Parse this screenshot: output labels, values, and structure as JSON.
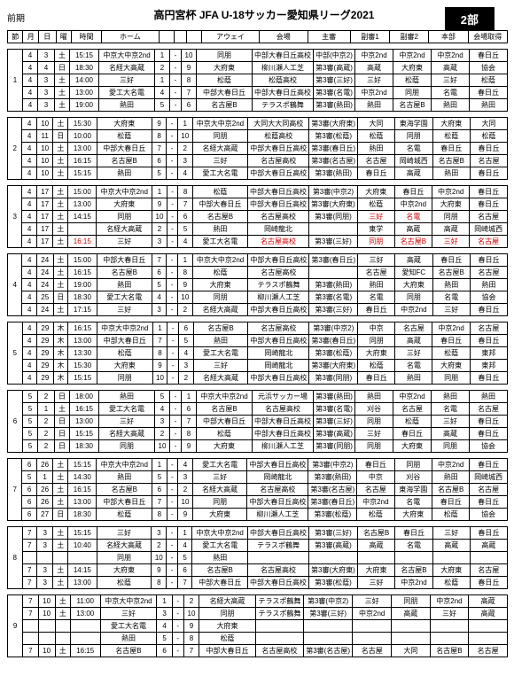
{
  "title": "高円宮杯 JFA U-18サッカー愛知県リーグ2021",
  "badge": "2部",
  "period": "前期",
  "headers": [
    "節",
    "月",
    "日",
    "曜",
    "時間",
    "ホーム",
    "",
    "",
    "",
    "アウェイ",
    "会場",
    "主審",
    "副審1",
    "副審2",
    "本部",
    "会場取得"
  ],
  "blocks": [
    {
      "setu": "1",
      "rows": [
        [
          "4",
          "3",
          "土",
          "15:15",
          "中京大中京2nd",
          "1",
          "-",
          "10",
          "同朋",
          "中部大春日丘高校",
          "中部(中京2)",
          "中京2nd",
          "中京2nd",
          "中京2nd",
          "春日丘"
        ],
        [
          "4",
          "4",
          "日",
          "18:30",
          "名経大高蔵",
          "2",
          "-",
          "9",
          "大府東",
          "柳川瀬人工芝",
          "第3審(高蔵)",
          "高蔵",
          "大府東",
          "高蔵",
          "協会"
        ],
        [
          "4",
          "3",
          "土",
          "14:00",
          "三好",
          "1",
          "-",
          "8",
          "松蔭",
          "松蔭高校",
          "第3審(三好)",
          "三好",
          "松蔭",
          "三好",
          "松蔭"
        ],
        [
          "4",
          "3",
          "土",
          "13:00",
          "愛工大名電",
          "4",
          "-",
          "7",
          "中部大春日丘",
          "中部大春日丘高校",
          "第3審(名電)",
          "中京2nd",
          "同朋",
          "名電",
          "春日丘"
        ],
        [
          "4",
          "3",
          "土",
          "19:00",
          "熱田",
          "5",
          "-",
          "6",
          "名古屋B",
          "テラスポ鶴舞",
          "第3審(熱田)",
          "熱田",
          "名古屋B",
          "熱田",
          "熱田"
        ]
      ]
    },
    {
      "setu": "2",
      "rows": [
        [
          "4",
          "10",
          "土",
          "15:30",
          "大府東",
          "9",
          "-",
          "1",
          "中京大中京2nd",
          "大同大大同高校",
          "第3審(大府東)",
          "大同",
          "東海学園",
          "大府東",
          "大同"
        ],
        [
          "4",
          "11",
          "日",
          "10:00",
          "松蔭",
          "8",
          "-",
          "10",
          "同朋",
          "松蔭高校",
          "第3審(松蔭)",
          "松蔭",
          "同朋",
          "松蔭",
          "松蔭"
        ],
        [
          "4",
          "10",
          "土",
          "13:00",
          "中部大春日丘",
          "7",
          "-",
          "2",
          "名経大高蔵",
          "中部大春日丘高校",
          "第3審(春日丘)",
          "熱田",
          "名電",
          "春日丘",
          "春日丘"
        ],
        [
          "4",
          "10",
          "土",
          "16:15",
          "名古屋B",
          "6",
          "-",
          "3",
          "三好",
          "名古屋高校",
          "第3審(名古屋)",
          "名古屋",
          "岡崎城西",
          "名古屋B",
          "名古屋"
        ],
        [
          "4",
          "10",
          "土",
          "15:15",
          "熱田",
          "5",
          "-",
          "4",
          "愛工大名電",
          "中部大春日丘高校",
          "第3審(熱田)",
          "春日丘",
          "高蔵",
          "熱田",
          "春日丘"
        ]
      ]
    },
    {
      "setu": "3",
      "rows": [
        [
          "4",
          "17",
          "土",
          "15:00",
          "中京大中京2nd",
          "1",
          "-",
          "8",
          "松蔭",
          "中部大春日丘高校",
          "第3審(中京2)",
          "大府東",
          "春日丘",
          "中京2nd",
          "春日丘"
        ],
        [
          "4",
          "17",
          "土",
          "13:00",
          "大府東",
          "9",
          "-",
          "7",
          "中部大春日丘",
          "中部大春日丘高校",
          "第3審(大府東)",
          "松蔭",
          "中京2nd",
          "大府東",
          "春日丘"
        ],
        [
          "4",
          "17",
          "土",
          "14:15",
          "同朋",
          "10",
          "-",
          "6",
          "名古屋B",
          "名古屋高校",
          "第3審(同朋)",
          "<red>三好</red>",
          "<red>名電</red>",
          "同朋",
          "名古屋"
        ],
        [
          "4",
          "17",
          "土",
          "",
          "名経大高蔵",
          "2",
          "-",
          "5",
          "熱田",
          "岡崎龍北",
          "",
          "東学",
          "高蔵",
          "高蔵",
          "岡崎城西"
        ],
        [
          "4",
          "17",
          "土",
          "<red>16:15</red>",
          "三好",
          "3",
          "-",
          "4",
          "愛工大名電",
          "<red>名古屋高校</red>",
          "第3審(三好)",
          "<red>同朋</red>",
          "<red>名古屋B</red>",
          "<red>三好</red>",
          "<red>名古屋</red>"
        ]
      ]
    },
    {
      "setu": "4",
      "rows": [
        [
          "4",
          "24",
          "土",
          "15:00",
          "中部大春日丘",
          "7",
          "-",
          "1",
          "中京大中京2nd",
          "中部大春日丘高校",
          "第3審(春日丘)",
          "三好",
          "高蔵",
          "春日丘",
          "春日丘"
        ],
        [
          "4",
          "24",
          "土",
          "16:15",
          "名古屋B",
          "6",
          "-",
          "8",
          "松蔭",
          "名古屋高校",
          "",
          "名古屋",
          "愛知FC",
          "名古屋B",
          "名古屋"
        ],
        [
          "4",
          "24",
          "土",
          "19:00",
          "熱田",
          "5",
          "-",
          "9",
          "大府東",
          "テラスポ鶴舞",
          "第3審(熱田)",
          "熱田",
          "大府東",
          "熱田",
          "熱田"
        ],
        [
          "4",
          "25",
          "日",
          "18:30",
          "愛工大名電",
          "4",
          "-",
          "10",
          "同朋",
          "柳川瀬人工芝",
          "第3審(名電)",
          "名電",
          "同朋",
          "名電",
          "協会"
        ],
        [
          "4",
          "24",
          "土",
          "17:15",
          "三好",
          "3",
          "-",
          "2",
          "名経大高蔵",
          "中部大春日丘高校",
          "第3審(三好)",
          "春日丘",
          "中京2nd",
          "三好",
          "春日丘"
        ]
      ]
    },
    {
      "setu": "5",
      "rows": [
        [
          "4",
          "29",
          "木",
          "16:15",
          "中京大中京2nd",
          "1",
          "-",
          "6",
          "名古屋B",
          "名古屋高校",
          "第3審(中京2)",
          "中京",
          "名古屋",
          "中京2nd",
          "名古屋"
        ],
        [
          "4",
          "29",
          "木",
          "13:00",
          "中部大春日丘",
          "7",
          "-",
          "5",
          "熱田",
          "中部大春日丘高校",
          "第3審(春日丘)",
          "同朋",
          "高蔵",
          "春日丘",
          "春日丘"
        ],
        [
          "4",
          "29",
          "木",
          "13:30",
          "松蔭",
          "8",
          "-",
          "4",
          "愛工大名電",
          "岡崎龍北",
          "第3審(松蔭)",
          "大府東",
          "三好",
          "松蔭",
          "東邦"
        ],
        [
          "4",
          "29",
          "木",
          "15:30",
          "大府東",
          "9",
          "-",
          "3",
          "三好",
          "岡崎龍北",
          "第3審(大府東)",
          "松蔭",
          "名電",
          "大府東",
          "東邦"
        ],
        [
          "4",
          "29",
          "木",
          "15:15",
          "同朋",
          "10",
          "-",
          "2",
          "名経大高蔵",
          "中部大春日丘高校",
          "第3審(同朋)",
          "春日丘",
          "熱田",
          "同朋",
          "春日丘"
        ]
      ]
    },
    {
      "setu": "6",
      "rows": [
        [
          "5",
          "2",
          "日",
          "18:00",
          "熱田",
          "5",
          "-",
          "1",
          "中京大中京2nd",
          "元浜サッカー場",
          "第3審(熱田)",
          "熱田",
          "中京2nd",
          "熱田",
          "熱田"
        ],
        [
          "5",
          "1",
          "土",
          "16:15",
          "愛工大名電",
          "4",
          "-",
          "6",
          "名古屋B",
          "名古屋高校",
          "第3審(名電)",
          "刈谷",
          "名古屋",
          "名電",
          "名古屋"
        ],
        [
          "5",
          "2",
          "日",
          "13:00",
          "三好",
          "3",
          "-",
          "7",
          "中部大春日丘",
          "中部大春日丘高校",
          "第3審(三好)",
          "同朋",
          "松蔭",
          "三好",
          "春日丘"
        ],
        [
          "5",
          "2",
          "日",
          "15:15",
          "名経大高蔵",
          "2",
          "-",
          "8",
          "松蔭",
          "中部大春日丘高校",
          "第3審(高蔵)",
          "三好",
          "春日丘",
          "高蔵",
          "春日丘"
        ],
        [
          "5",
          "2",
          "日",
          "18:30",
          "同朋",
          "10",
          "-",
          "9",
          "大府東",
          "柳川瀬人工芝",
          "第3審(同朋)",
          "同朋",
          "大府東",
          "同朋",
          "協会"
        ]
      ]
    },
    {
      "setu": "7",
      "rows": [
        [
          "6",
          "26",
          "土",
          "15:15",
          "中京大中京2nd",
          "1",
          "-",
          "4",
          "愛工大名電",
          "中部大春日丘高校",
          "第3審(中京2)",
          "春日丘",
          "同朋",
          "中京2nd",
          "春日丘"
        ],
        [
          "5",
          "1",
          "土",
          "14:30",
          "熱田",
          "5",
          "-",
          "3",
          "三好",
          "岡崎龍北",
          "第3審(熱田)",
          "中京",
          "刈谷",
          "熱田",
          "岡崎城西"
        ],
        [
          "6",
          "26",
          "土",
          "16:15",
          "名古屋B",
          "6",
          "-",
          "2",
          "名経大高蔵",
          "名古屋高校",
          "第3審(名古屋)",
          "名古屋",
          "東海学園",
          "名古屋B",
          "名古屋"
        ],
        [
          "6",
          "26",
          "土",
          "13:00",
          "中部大春日丘",
          "7",
          "-",
          "10",
          "同朋",
          "中部大春日丘高校",
          "第3審(春日丘)",
          "中京2nd",
          "名電",
          "春日丘",
          "春日丘"
        ],
        [
          "6",
          "27",
          "日",
          "18:30",
          "松蔭",
          "8",
          "-",
          "9",
          "大府東",
          "柳川瀬人工芝",
          "第3審(松蔭)",
          "松蔭",
          "大府東",
          "松蔭",
          "協会"
        ]
      ]
    },
    {
      "setu": "8",
      "rows": [
        [
          "7",
          "3",
          "土",
          "15:15",
          "三好",
          "3",
          "-",
          "1",
          "中京大中京2nd",
          "中部大春日丘高校",
          "第3審(三好)",
          "名古屋B",
          "春日丘",
          "三好",
          "春日丘"
        ],
        [
          "7",
          "3",
          "土",
          "10:40",
          "名経大高蔵",
          "2",
          "-",
          "4",
          "愛工大名電",
          "テラスポ鶴舞",
          "第3審(高蔵)",
          "高蔵",
          "名電",
          "高蔵",
          "高蔵"
        ],
        [
          "",
          "",
          "",
          "",
          "同朋",
          "10",
          "-",
          "5",
          "熱田",
          "",
          "",
          "",
          "",
          "",
          ""
        ],
        [
          "7",
          "3",
          "土",
          "14:15",
          "大府東",
          "9",
          "-",
          "6",
          "名古屋B",
          "名古屋高校",
          "第3審(大府東)",
          "大府東",
          "名古屋B",
          "大府東",
          "名古屋"
        ],
        [
          "7",
          "3",
          "土",
          "13:00",
          "松蔭",
          "8",
          "-",
          "7",
          "中部大春日丘",
          "中部大春日丘高校",
          "第3審(松蔭)",
          "三好",
          "中京2nd",
          "松蔭",
          "春日丘"
        ]
      ]
    },
    {
      "setu": "9",
      "rows": [
        [
          "7",
          "10",
          "土",
          "11:00",
          "中京大中京2nd",
          "1",
          "-",
          "2",
          "名経大高蔵",
          "テラスポ鶴舞",
          "第3審(中京2)",
          "三好",
          "同朋",
          "中京2nd",
          "高蔵"
        ],
        [
          "7",
          "10",
          "土",
          "13:00",
          "三好",
          "3",
          "-",
          "10",
          "同朋",
          "テラスポ鶴舞",
          "第3審(三好)",
          "中京2nd",
          "高蔵",
          "三好",
          "高蔵"
        ],
        [
          "",
          "",
          "",
          "",
          "愛工大名電",
          "4",
          "-",
          "9",
          "大府東",
          "",
          "",
          "",
          "",
          "",
          ""
        ],
        [
          "",
          "",
          "",
          "",
          "熱田",
          "5",
          "-",
          "8",
          "松蔭",
          "",
          "",
          "",
          "",
          "",
          ""
        ],
        [
          "7",
          "10",
          "土",
          "16:15",
          "名古屋B",
          "6",
          "-",
          "7",
          "中部大春日丘",
          "名古屋高校",
          "第3審(名古屋)",
          "名古屋",
          "大同",
          "名古屋B",
          "名古屋"
        ]
      ]
    }
  ]
}
